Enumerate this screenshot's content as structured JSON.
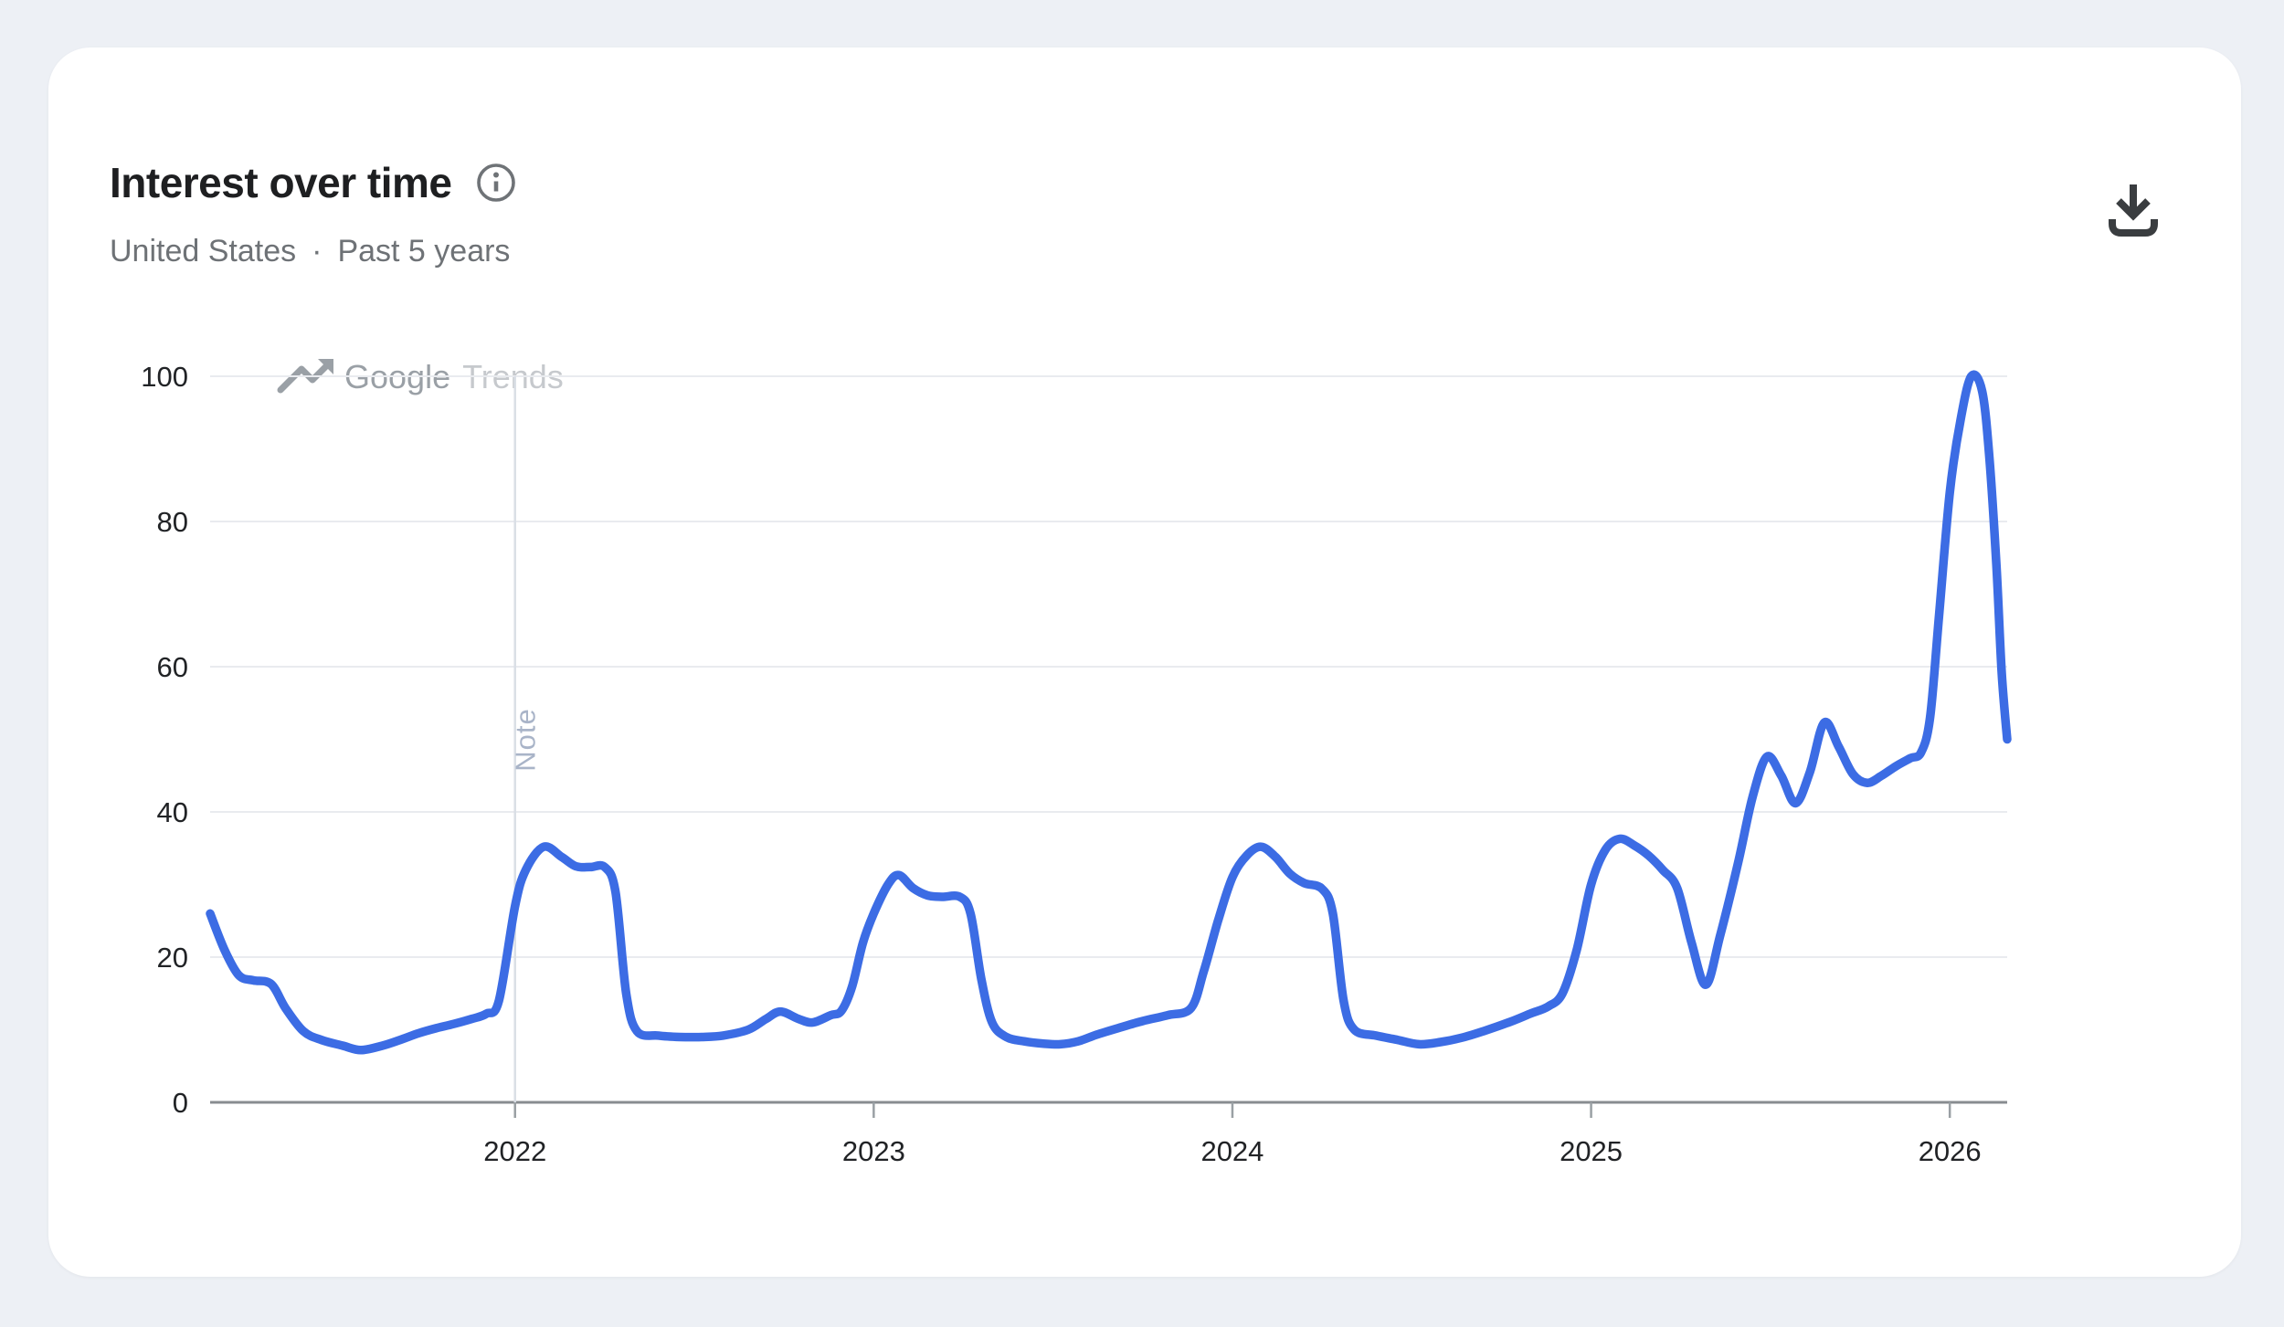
{
  "window": {
    "background_color": "#edf0f5",
    "card_background_color": "#ffffff"
  },
  "header": {
    "title": "Interest over time",
    "region": "United States",
    "separator": "·",
    "time_range": "Past 5 years"
  },
  "watermark": {
    "brand": "Google",
    "product": "Trends"
  },
  "icons": {
    "info": "info-circle",
    "download": "download-to-tray",
    "watermark_arrow": "trending-up"
  },
  "chart_data": {
    "type": "line",
    "title": "Interest over time",
    "region": "United States",
    "time_range": "Past 5 years",
    "x_ticks": [
      2022,
      2023,
      2024,
      2025,
      2026
    ],
    "xlim": [
      2021.15,
      2026.16
    ],
    "y_ticks": [
      0,
      20,
      40,
      60,
      80,
      100
    ],
    "ylim": [
      0,
      100
    ],
    "grid": true,
    "legend": false,
    "line_color": "#3c6ce4",
    "annotations": [
      {
        "x": 2022.0,
        "label": "Note"
      }
    ],
    "series": [
      {
        "name": "Interest over time",
        "points": [
          [
            2021.15,
            26
          ],
          [
            2021.19,
            21
          ],
          [
            2021.23,
            17.5
          ],
          [
            2021.27,
            16.8
          ],
          [
            2021.32,
            16.3
          ],
          [
            2021.36,
            13
          ],
          [
            2021.41,
            9.8
          ],
          [
            2021.46,
            8.6
          ],
          [
            2021.52,
            7.8
          ],
          [
            2021.57,
            7.2
          ],
          [
            2021.63,
            7.8
          ],
          [
            2021.68,
            8.6
          ],
          [
            2021.73,
            9.5
          ],
          [
            2021.78,
            10.2
          ],
          [
            2021.83,
            10.8
          ],
          [
            2021.88,
            11.5
          ],
          [
            2021.92,
            12.2
          ],
          [
            2021.955,
            14
          ],
          [
            2022.0,
            27
          ],
          [
            2022.03,
            32
          ],
          [
            2022.08,
            35.2
          ],
          [
            2022.13,
            33.8
          ],
          [
            2022.17,
            32.5
          ],
          [
            2022.21,
            32.4
          ],
          [
            2022.25,
            32.4
          ],
          [
            2022.28,
            29
          ],
          [
            2022.31,
            15
          ],
          [
            2022.34,
            9.8
          ],
          [
            2022.4,
            9.2
          ],
          [
            2022.46,
            9
          ],
          [
            2022.52,
            9
          ],
          [
            2022.58,
            9.2
          ],
          [
            2022.65,
            10
          ],
          [
            2022.7,
            11.5
          ],
          [
            2022.74,
            12.5
          ],
          [
            2022.79,
            11.5
          ],
          [
            2022.83,
            11
          ],
          [
            2022.88,
            12
          ],
          [
            2022.91,
            12.6
          ],
          [
            2022.94,
            16
          ],
          [
            2022.97,
            22
          ],
          [
            2023.0,
            26
          ],
          [
            2023.04,
            30
          ],
          [
            2023.07,
            31.3
          ],
          [
            2023.11,
            29.5
          ],
          [
            2023.15,
            28.5
          ],
          [
            2023.19,
            28.3
          ],
          [
            2023.24,
            28.3
          ],
          [
            2023.27,
            26
          ],
          [
            2023.3,
            17
          ],
          [
            2023.33,
            11
          ],
          [
            2023.37,
            9
          ],
          [
            2023.42,
            8.4
          ],
          [
            2023.47,
            8.1
          ],
          [
            2023.52,
            8
          ],
          [
            2023.57,
            8.4
          ],
          [
            2023.62,
            9.3
          ],
          [
            2023.68,
            10.2
          ],
          [
            2023.75,
            11.2
          ],
          [
            2023.82,
            12
          ],
          [
            2023.885,
            13
          ],
          [
            2023.92,
            18
          ],
          [
            2023.96,
            25
          ],
          [
            2024.0,
            31
          ],
          [
            2024.04,
            34
          ],
          [
            2024.08,
            35.2
          ],
          [
            2024.12,
            33.8
          ],
          [
            2024.16,
            31.5
          ],
          [
            2024.2,
            30.2
          ],
          [
            2024.25,
            29.4
          ],
          [
            2024.28,
            26
          ],
          [
            2024.31,
            14
          ],
          [
            2024.34,
            10
          ],
          [
            2024.4,
            9.2
          ],
          [
            2024.46,
            8.6
          ],
          [
            2024.52,
            8
          ],
          [
            2024.58,
            8.3
          ],
          [
            2024.64,
            8.9
          ],
          [
            2024.7,
            9.8
          ],
          [
            2024.77,
            11
          ],
          [
            2024.83,
            12.2
          ],
          [
            2024.88,
            13.2
          ],
          [
            2024.92,
            15
          ],
          [
            2024.96,
            21
          ],
          [
            2025.0,
            30
          ],
          [
            2025.04,
            34.8
          ],
          [
            2025.08,
            36.3
          ],
          [
            2025.12,
            35.4
          ],
          [
            2025.16,
            34
          ],
          [
            2025.2,
            32
          ],
          [
            2025.24,
            29.5
          ],
          [
            2025.28,
            22
          ],
          [
            2025.32,
            16.2
          ],
          [
            2025.36,
            23
          ],
          [
            2025.41,
            33
          ],
          [
            2025.45,
            42
          ],
          [
            2025.49,
            47.6
          ],
          [
            2025.53,
            45
          ],
          [
            2025.57,
            41.2
          ],
          [
            2025.61,
            45.5
          ],
          [
            2025.65,
            52.3
          ],
          [
            2025.69,
            49
          ],
          [
            2025.73,
            45.2
          ],
          [
            2025.77,
            44
          ],
          [
            2025.81,
            45
          ],
          [
            2025.85,
            46.3
          ],
          [
            2025.89,
            47.4
          ],
          [
            2025.92,
            48.2
          ],
          [
            2025.945,
            53
          ],
          [
            2025.97,
            67
          ],
          [
            2026.0,
            84
          ],
          [
            2026.03,
            94
          ],
          [
            2026.06,
            100
          ],
          [
            2026.09,
            98
          ],
          [
            2026.11,
            89
          ],
          [
            2026.13,
            74
          ],
          [
            2026.145,
            59
          ],
          [
            2026.16,
            50
          ]
        ]
      }
    ]
  }
}
